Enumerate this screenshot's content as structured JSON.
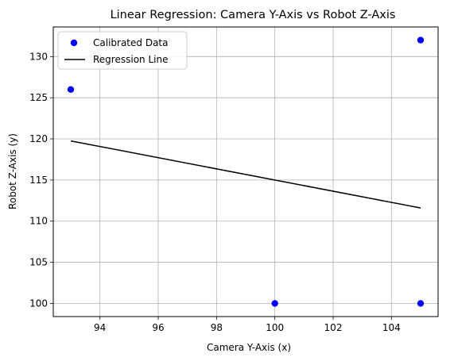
{
  "chart_data": {
    "type": "scatter",
    "title": "Linear Regression: Camera Y-Axis vs Robot Z-Axis",
    "xlabel": "Camera Y-Axis (x)",
    "ylabel": "Robot Z-Axis (y)",
    "xlim": [
      92.4,
      105.6
    ],
    "ylim": [
      98.4,
      133.6
    ],
    "xticks": [
      94,
      96,
      98,
      100,
      102,
      104
    ],
    "yticks": [
      100,
      105,
      110,
      115,
      120,
      125,
      130
    ],
    "grid": true,
    "legend_position": "top-left",
    "series": [
      {
        "name": "Calibrated Data",
        "kind": "scatter",
        "color": "#0000ff",
        "points": [
          {
            "x": 93,
            "y": 126
          },
          {
            "x": 100,
            "y": 100
          },
          {
            "x": 105,
            "y": 132
          },
          {
            "x": 105,
            "y": 100
          }
        ]
      },
      {
        "name": "Regression Line",
        "kind": "line",
        "color": "#000000",
        "points": [
          {
            "x": 93,
            "y": 119.75
          },
          {
            "x": 105,
            "y": 111.6
          }
        ]
      }
    ]
  }
}
